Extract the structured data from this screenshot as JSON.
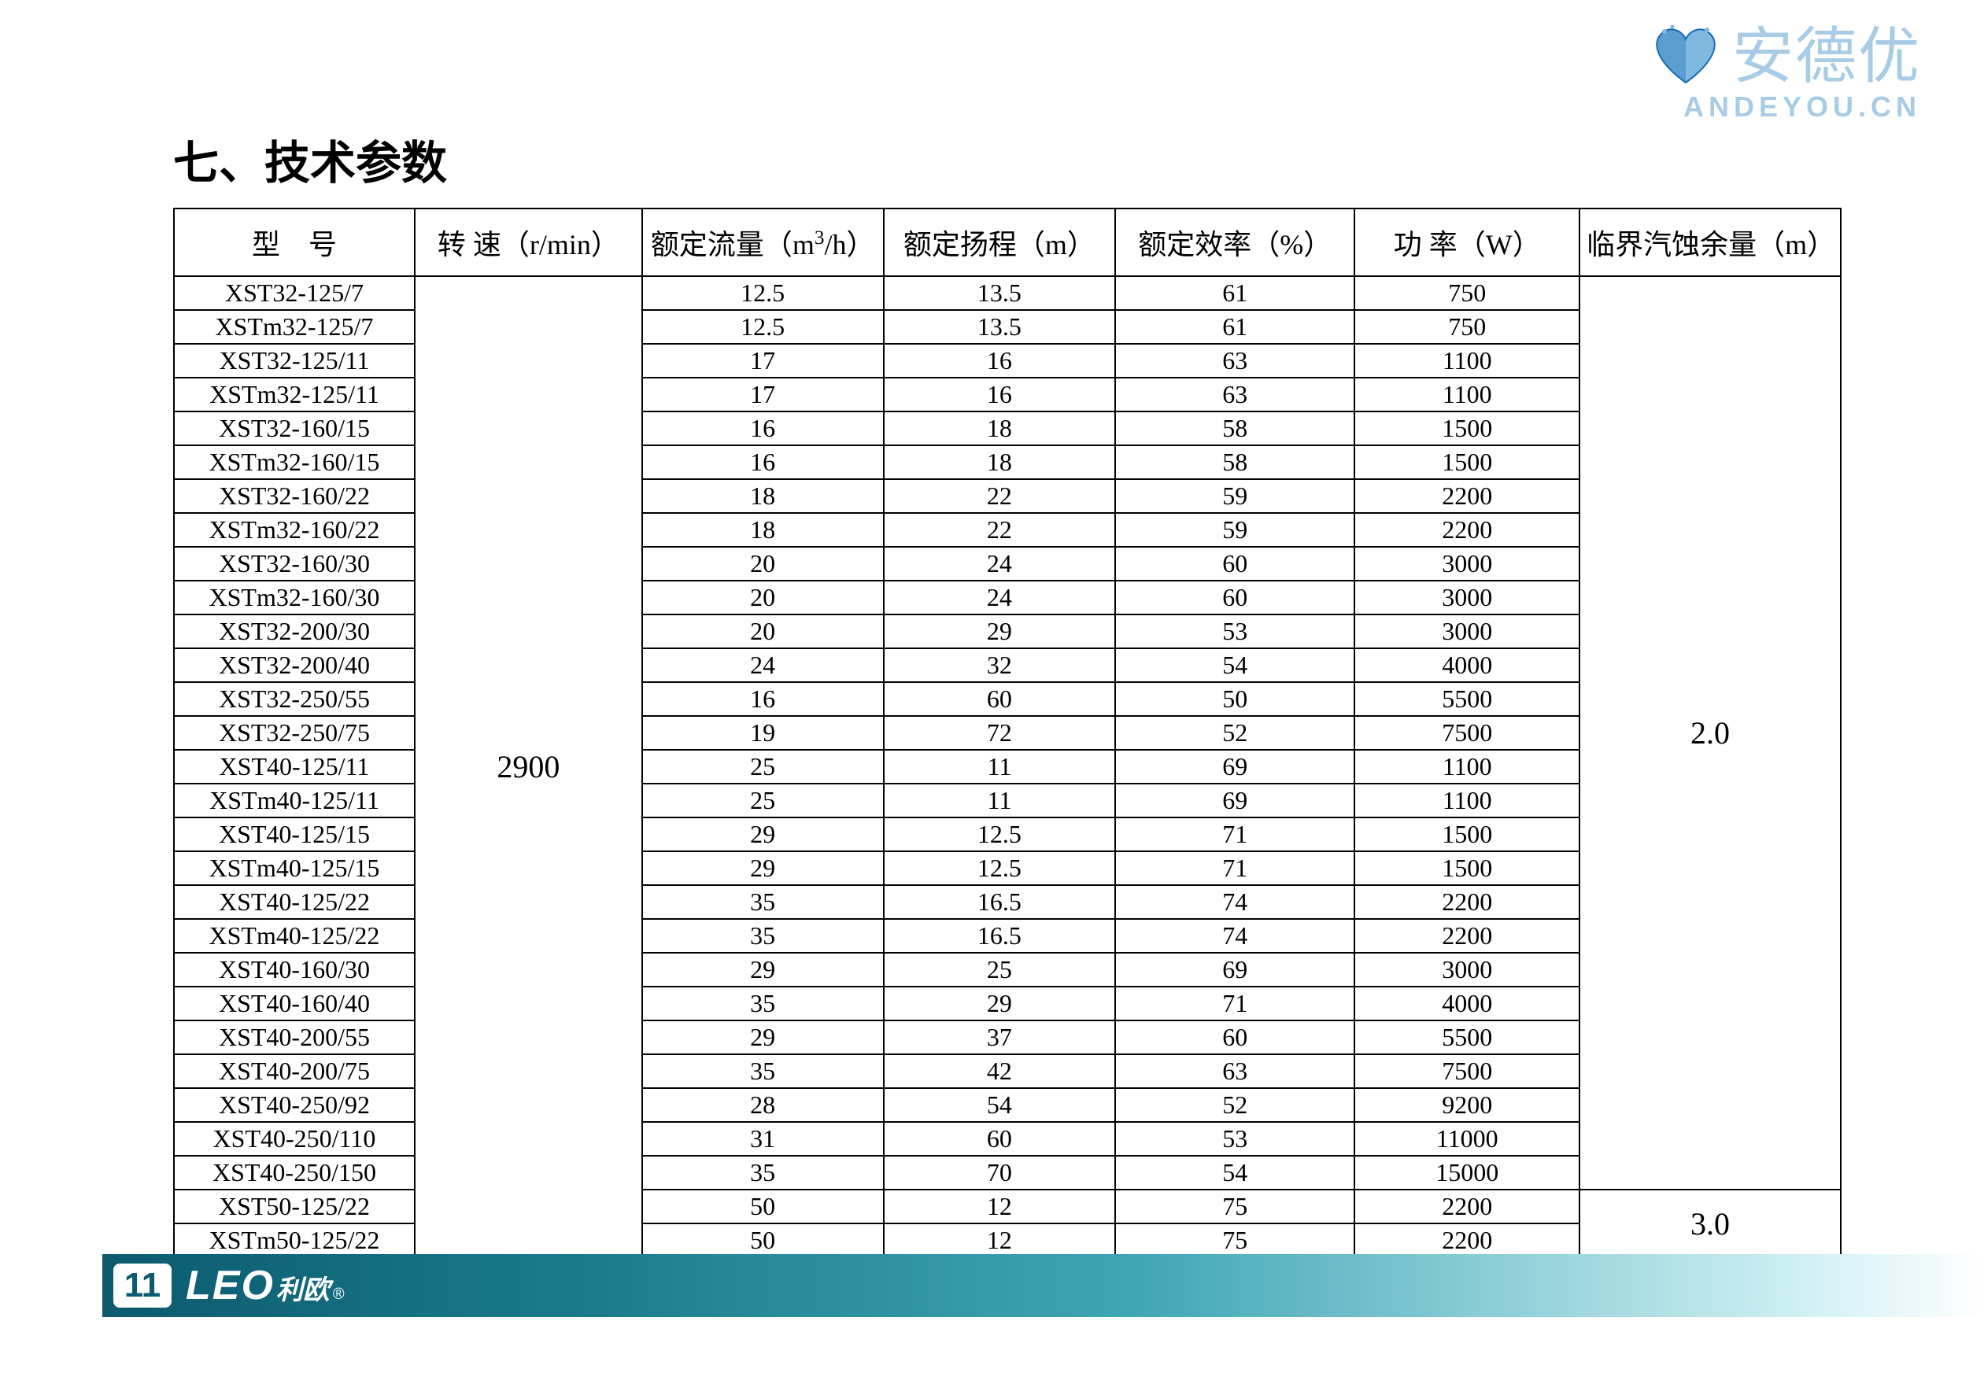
{
  "watermark": {
    "cn": "安德优",
    "en": "ANDEYOU.CN",
    "heart_color": "#7fb9e0",
    "heart_dark": "#1a6bb0"
  },
  "title": "七、技术参数",
  "columns": [
    "型　号",
    "转 速（r/min）",
    "额定流量（m³/h）",
    "额定扬程（m）",
    "额定效率（%）",
    "功 率（W）",
    "临界汽蚀余量（m）"
  ],
  "speed_value": "2900",
  "npsh_group1": "2.0",
  "npsh_group2": "3.0",
  "rows_group1": [
    {
      "model": "XST32-125/7",
      "flow": "12.5",
      "head": "13.5",
      "eff": "61",
      "power": "750"
    },
    {
      "model": "XSTm32-125/7",
      "flow": "12.5",
      "head": "13.5",
      "eff": "61",
      "power": "750"
    },
    {
      "model": "XST32-125/11",
      "flow": "17",
      "head": "16",
      "eff": "63",
      "power": "1100"
    },
    {
      "model": "XSTm32-125/11",
      "flow": "17",
      "head": "16",
      "eff": "63",
      "power": "1100"
    },
    {
      "model": "XST32-160/15",
      "flow": "16",
      "head": "18",
      "eff": "58",
      "power": "1500"
    },
    {
      "model": "XSTm32-160/15",
      "flow": "16",
      "head": "18",
      "eff": "58",
      "power": "1500"
    },
    {
      "model": "XST32-160/22",
      "flow": "18",
      "head": "22",
      "eff": "59",
      "power": "2200"
    },
    {
      "model": "XSTm32-160/22",
      "flow": "18",
      "head": "22",
      "eff": "59",
      "power": "2200"
    },
    {
      "model": "XST32-160/30",
      "flow": "20",
      "head": "24",
      "eff": "60",
      "power": "3000"
    },
    {
      "model": "XSTm32-160/30",
      "flow": "20",
      "head": "24",
      "eff": "60",
      "power": "3000"
    },
    {
      "model": "XST32-200/30",
      "flow": "20",
      "head": "29",
      "eff": "53",
      "power": "3000"
    },
    {
      "model": "XST32-200/40",
      "flow": "24",
      "head": "32",
      "eff": "54",
      "power": "4000"
    },
    {
      "model": "XST32-250/55",
      "flow": "16",
      "head": "60",
      "eff": "50",
      "power": "5500"
    },
    {
      "model": "XST32-250/75",
      "flow": "19",
      "head": "72",
      "eff": "52",
      "power": "7500"
    },
    {
      "model": "XST40-125/11",
      "flow": "25",
      "head": "11",
      "eff": "69",
      "power": "1100"
    },
    {
      "model": "XSTm40-125/11",
      "flow": "25",
      "head": "11",
      "eff": "69",
      "power": "1100"
    },
    {
      "model": "XST40-125/15",
      "flow": "29",
      "head": "12.5",
      "eff": "71",
      "power": "1500"
    },
    {
      "model": "XSTm40-125/15",
      "flow": "29",
      "head": "12.5",
      "eff": "71",
      "power": "1500"
    },
    {
      "model": "XST40-125/22",
      "flow": "35",
      "head": "16.5",
      "eff": "74",
      "power": "2200"
    },
    {
      "model": "XSTm40-125/22",
      "flow": "35",
      "head": "16.5",
      "eff": "74",
      "power": "2200"
    },
    {
      "model": "XST40-160/30",
      "flow": "29",
      "head": "25",
      "eff": "69",
      "power": "3000"
    },
    {
      "model": "XST40-160/40",
      "flow": "35",
      "head": "29",
      "eff": "71",
      "power": "4000"
    },
    {
      "model": "XST40-200/55",
      "flow": "29",
      "head": "37",
      "eff": "60",
      "power": "5500"
    },
    {
      "model": "XST40-200/75",
      "flow": "35",
      "head": "42",
      "eff": "63",
      "power": "7500"
    },
    {
      "model": "XST40-250/92",
      "flow": "28",
      "head": "54",
      "eff": "52",
      "power": "9200"
    },
    {
      "model": "XST40-250/110",
      "flow": "31",
      "head": "60",
      "eff": "53",
      "power": "11000"
    },
    {
      "model": "XST40-250/150",
      "flow": "35",
      "head": "70",
      "eff": "54",
      "power": "15000"
    }
  ],
  "rows_group2": [
    {
      "model": "XST50-125/22",
      "flow": "50",
      "head": "12",
      "eff": "75",
      "power": "2200"
    },
    {
      "model": "XSTm50-125/22",
      "flow": "50",
      "head": "12",
      "eff": "75",
      "power": "2200"
    }
  ],
  "footer": {
    "page_number": "11",
    "logo_leo": "LEO",
    "logo_cn": "利欧",
    "reg": "®"
  },
  "style": {
    "border_color": "#000000",
    "header_fontsize": 36,
    "cell_fontsize": 32,
    "title_fontsize": 58,
    "footer_gradient_start": "#0c5a6e",
    "footer_gradient_end": "#ffffff"
  }
}
